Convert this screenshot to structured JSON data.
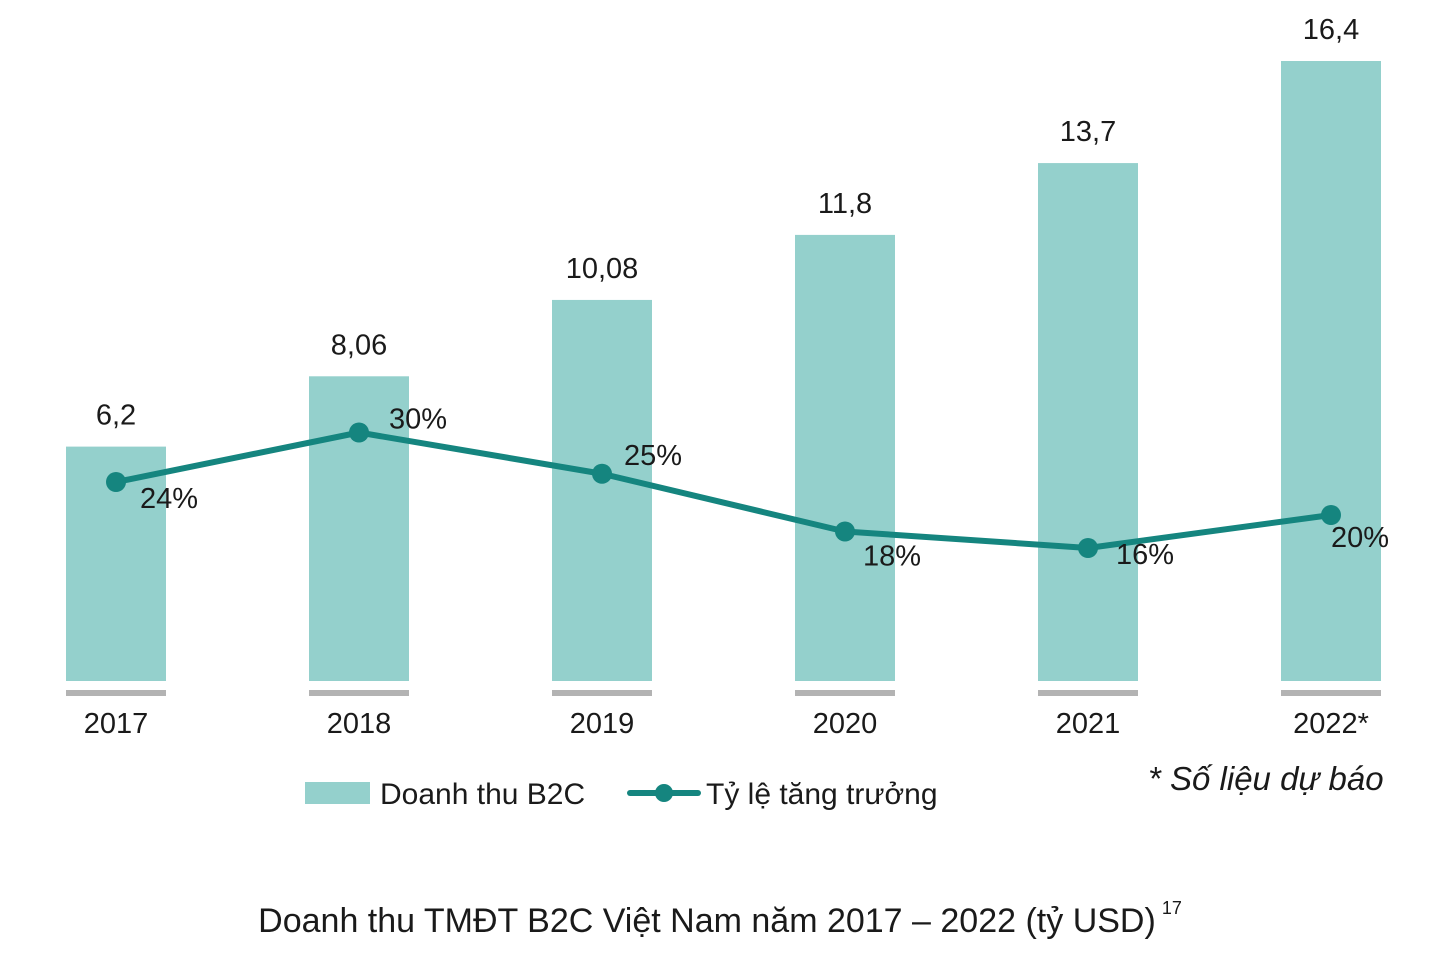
{
  "chart_data": {
    "type": "bar",
    "categories": [
      "2017",
      "2018",
      "2019",
      "2020",
      "2021",
      "2022*"
    ],
    "series": [
      {
        "name": "Doanh thu B2C",
        "kind": "bar",
        "values": [
          6.2,
          8.06,
          10.08,
          11.8,
          13.7,
          16.4
        ],
        "labels": [
          "6,2",
          "8,06",
          "10,08",
          "11,8",
          "13,7",
          "16,4"
        ],
        "color": "#94d0cc"
      },
      {
        "name": "Tỷ lệ tăng trưởng",
        "kind": "line",
        "values": [
          24,
          30,
          25,
          18,
          16,
          20
        ],
        "labels": [
          "24%",
          "30%",
          "25%",
          "18%",
          "16%",
          "20%"
        ],
        "color": "#15857f"
      }
    ],
    "ylim_bars": [
      0,
      16.4
    ],
    "title": "Doanh thu TMĐT B2C Việt Nam năm 2017 – 2022 (tỷ USD)",
    "footnote_ref": "17",
    "annotation": "* Số liệu dự báo",
    "legend_position": "bottom",
    "grid": false,
    "tick_mark_color": "#b3b3b3"
  }
}
